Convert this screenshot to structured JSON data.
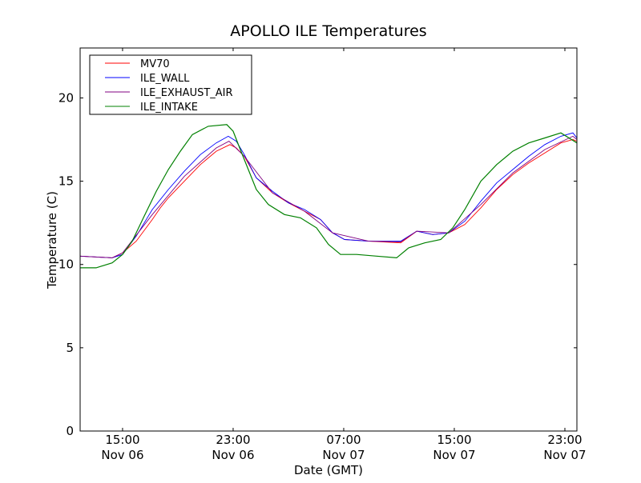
{
  "chart_data": {
    "type": "line",
    "title": "APOLLO ILE Temperatures",
    "xlabel": "Date (GMT)",
    "ylabel": "Temperature (C)",
    "x_units": "hours since Nov 06 00:00 GMT",
    "xlim": [
      11.93,
      47.87
    ],
    "ylim": [
      0,
      23
    ],
    "yticks": [
      0,
      5,
      10,
      15,
      20
    ],
    "xticks": [
      {
        "value": 15,
        "time": "15:00",
        "date": "Nov 06"
      },
      {
        "value": 23,
        "time": "23:00",
        "date": "Nov 06"
      },
      {
        "value": 31,
        "time": "07:00",
        "date": "Nov 07"
      },
      {
        "value": 39,
        "time": "15:00",
        "date": "Nov 07"
      },
      {
        "value": 47,
        "time": "23:00",
        "date": "Nov 07"
      }
    ],
    "grid": false,
    "legend_position": "top-left",
    "series": [
      {
        "name": "MV70",
        "color": "#ff0000",
        "points": [
          [
            11.93,
            10.5
          ],
          [
            14.25,
            10.4
          ],
          [
            15.0,
            10.7
          ],
          [
            15.99,
            11.4
          ],
          [
            17.15,
            12.7
          ],
          [
            17.73,
            13.4
          ],
          [
            18.31,
            14.0
          ],
          [
            19.47,
            15.0
          ],
          [
            20.63,
            16.0
          ],
          [
            21.78,
            16.8
          ],
          [
            22.77,
            17.2
          ],
          [
            23.23,
            17.0
          ],
          [
            23.81,
            16.5
          ],
          [
            24.68,
            15.2
          ],
          [
            25.84,
            14.3
          ],
          [
            27.0,
            13.7
          ],
          [
            28.16,
            13.2
          ],
          [
            29.32,
            12.7
          ],
          [
            30.19,
            11.9
          ],
          [
            31.06,
            11.5
          ],
          [
            32.8,
            11.4
          ],
          [
            35.12,
            11.3
          ],
          [
            36.28,
            12.0
          ],
          [
            37.44,
            11.8
          ],
          [
            38.6,
            11.9
          ],
          [
            39.76,
            12.4
          ],
          [
            40.92,
            13.4
          ],
          [
            42.07,
            14.5
          ],
          [
            43.23,
            15.4
          ],
          [
            44.39,
            16.1
          ],
          [
            45.55,
            16.7
          ],
          [
            46.71,
            17.3
          ],
          [
            47.58,
            17.5
          ],
          [
            47.87,
            17.4
          ]
        ]
      },
      {
        "name": "ILE_WALL",
        "color": "#0000ff",
        "points": [
          [
            11.93,
            10.5
          ],
          [
            14.25,
            10.4
          ],
          [
            15.0,
            10.6
          ],
          [
            15.99,
            11.7
          ],
          [
            17.15,
            13.3
          ],
          [
            18.31,
            14.5
          ],
          [
            19.47,
            15.6
          ],
          [
            20.63,
            16.6
          ],
          [
            21.78,
            17.3
          ],
          [
            22.65,
            17.7
          ],
          [
            23.23,
            17.4
          ],
          [
            23.81,
            16.6
          ],
          [
            24.68,
            15.2
          ],
          [
            25.84,
            14.4
          ],
          [
            27.0,
            13.7
          ],
          [
            28.16,
            13.3
          ],
          [
            29.32,
            12.7
          ],
          [
            30.19,
            11.9
          ],
          [
            31.06,
            11.5
          ],
          [
            32.8,
            11.4
          ],
          [
            35.12,
            11.4
          ],
          [
            36.28,
            12.0
          ],
          [
            37.44,
            11.8
          ],
          [
            38.6,
            11.9
          ],
          [
            39.76,
            12.6
          ],
          [
            40.92,
            13.8
          ],
          [
            42.07,
            14.9
          ],
          [
            43.23,
            15.7
          ],
          [
            44.39,
            16.5
          ],
          [
            45.55,
            17.2
          ],
          [
            46.71,
            17.7
          ],
          [
            47.58,
            17.9
          ],
          [
            47.87,
            17.6
          ]
        ]
      },
      {
        "name": "ILE_EXHAUST_AIR",
        "color": "#800080",
        "points": [
          [
            11.93,
            10.5
          ],
          [
            14.25,
            10.4
          ],
          [
            15.0,
            10.7
          ],
          [
            17.15,
            13.0
          ],
          [
            19.47,
            15.3
          ],
          [
            21.78,
            17.0
          ],
          [
            22.7,
            17.4
          ],
          [
            23.81,
            16.5
          ],
          [
            25.84,
            14.3
          ],
          [
            28.16,
            13.2
          ],
          [
            30.19,
            11.9
          ],
          [
            32.8,
            11.4
          ],
          [
            35.12,
            11.35
          ],
          [
            36.28,
            12.0
          ],
          [
            38.6,
            11.9
          ],
          [
            40.92,
            13.6
          ],
          [
            43.23,
            15.5
          ],
          [
            45.55,
            16.9
          ],
          [
            47.58,
            17.7
          ],
          [
            47.87,
            17.5
          ]
        ]
      },
      {
        "name": "ILE_INTAKE",
        "color": "#008000",
        "points": [
          [
            11.93,
            9.8
          ],
          [
            13.09,
            9.8
          ],
          [
            14.25,
            10.1
          ],
          [
            15.0,
            10.6
          ],
          [
            15.7,
            11.4
          ],
          [
            16.57,
            12.9
          ],
          [
            17.44,
            14.4
          ],
          [
            18.31,
            15.7
          ],
          [
            19.18,
            16.8
          ],
          [
            20.05,
            17.8
          ],
          [
            21.2,
            18.3
          ],
          [
            22.54,
            18.4
          ],
          [
            23.0,
            18.0
          ],
          [
            23.52,
            16.9
          ],
          [
            24.1,
            15.7
          ],
          [
            24.68,
            14.5
          ],
          [
            25.55,
            13.6
          ],
          [
            26.71,
            13.0
          ],
          [
            27.87,
            12.8
          ],
          [
            29.03,
            12.2
          ],
          [
            29.9,
            11.2
          ],
          [
            30.77,
            10.6
          ],
          [
            31.93,
            10.6
          ],
          [
            33.38,
            10.5
          ],
          [
            34.83,
            10.4
          ],
          [
            35.7,
            11.0
          ],
          [
            36.86,
            11.3
          ],
          [
            38.02,
            11.5
          ],
          [
            38.89,
            12.2
          ],
          [
            39.76,
            13.3
          ],
          [
            40.92,
            15.0
          ],
          [
            42.07,
            16.0
          ],
          [
            43.23,
            16.8
          ],
          [
            44.39,
            17.3
          ],
          [
            45.55,
            17.6
          ],
          [
            46.71,
            17.9
          ],
          [
            47.87,
            17.3
          ]
        ]
      }
    ]
  }
}
